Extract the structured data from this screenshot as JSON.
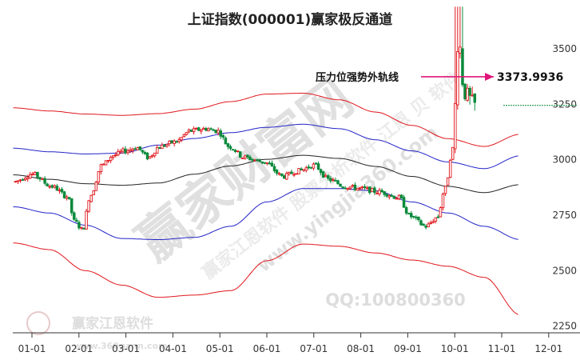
{
  "chart_data": {
    "type": "candlestick",
    "title": "上证指数(000001)赢家极反通道",
    "x_ticks": [
      "01-01",
      "02-01",
      "03-01",
      "04-01",
      "05-01",
      "06-01",
      "07-01",
      "08-01",
      "09-01",
      "10-01",
      "11-01",
      "12-01"
    ],
    "y_ticks": [
      2250,
      2500,
      2750,
      3000,
      3250,
      3500
    ],
    "ylim": [
      2220,
      3720
    ],
    "annotation": {
      "label": "压力位强势外轨线",
      "value": "3373.9936",
      "level": 3373.99
    },
    "watermarks": {
      "brand": "赢家财富网",
      "site": "www.yingjia360.com",
      "qq": "QQ:100800360",
      "logo_text": "赢家江恩软件",
      "logo_sub": "www.360gann.com",
      "diag_text": "赢家江恩软件 股票分析软件 江恩 贝 软件"
    },
    "colors": {
      "up": "#e0161b",
      "down": "#0b8a3c",
      "upper_band": "#e0161b",
      "lower_band": "#e0161b",
      "inner_upper": "#2323c8",
      "inner_lower": "#2323c8",
      "middle": "#222222",
      "arrow": "#e0167a"
    },
    "bands": {
      "outer_upper": [
        [
          0,
          3234
        ],
        [
          1,
          3220
        ],
        [
          2,
          3206
        ],
        [
          3,
          3200
        ],
        [
          4,
          3208
        ],
        [
          5,
          3228
        ],
        [
          6,
          3262
        ],
        [
          7,
          3296
        ],
        [
          8,
          3300
        ],
        [
          9,
          3270
        ],
        [
          10,
          3215
        ],
        [
          11,
          3155
        ],
        [
          12,
          3095
        ],
        [
          13,
          3060
        ],
        [
          14,
          3115
        ]
      ],
      "inner_upper": [
        [
          0,
          3052
        ],
        [
          1,
          3036
        ],
        [
          2,
          3026
        ],
        [
          3,
          3030
        ],
        [
          4,
          3066
        ],
        [
          5,
          3096
        ],
        [
          6,
          3122
        ],
        [
          7,
          3146
        ],
        [
          8,
          3160
        ],
        [
          9,
          3140
        ],
        [
          10,
          3090
        ],
        [
          11,
          3040
        ],
        [
          12,
          2990
        ],
        [
          13,
          2960
        ],
        [
          14,
          3018
        ]
      ],
      "middle": [
        [
          0,
          2932
        ],
        [
          1,
          2912
        ],
        [
          2,
          2892
        ],
        [
          3,
          2885
        ],
        [
          4,
          2895
        ],
        [
          5,
          2935
        ],
        [
          6,
          2972
        ],
        [
          7,
          3002
        ],
        [
          8,
          3020
        ],
        [
          9,
          3006
        ],
        [
          10,
          2970
        ],
        [
          11,
          2925
        ],
        [
          12,
          2880
        ],
        [
          13,
          2852
        ],
        [
          14,
          2888
        ]
      ],
      "inner_lower": [
        [
          0,
          2788
        ],
        [
          1,
          2760
        ],
        [
          2,
          2705
        ],
        [
          3,
          2645
        ],
        [
          4,
          2640
        ],
        [
          5,
          2650
        ],
        [
          6,
          2700
        ],
        [
          7,
          2810
        ],
        [
          8,
          2870
        ],
        [
          9,
          2870
        ],
        [
          10,
          2860
        ],
        [
          11,
          2810
        ],
        [
          12,
          2760
        ],
        [
          13,
          2700
        ],
        [
          14,
          2640
        ]
      ],
      "outer_lower": [
        [
          0,
          2625
        ],
        [
          1,
          2595
        ],
        [
          2,
          2500
        ],
        [
          3,
          2435
        ],
        [
          4,
          2380
        ],
        [
          5,
          2390
        ],
        [
          6,
          2410
        ],
        [
          7,
          2545
        ],
        [
          8,
          2620
        ],
        [
          9,
          2610
        ],
        [
          10,
          2580
        ],
        [
          11,
          2548
        ],
        [
          12,
          2520
        ],
        [
          13,
          2470
        ],
        [
          14,
          2300
        ]
      ]
    },
    "price_path": [
      [
        0,
        2900
      ],
      [
        0.5,
        2935
      ],
      [
        1,
        2880
      ],
      [
        1.4,
        2835
      ],
      [
        1.6,
        2720
      ],
      [
        1.8,
        2685
      ],
      [
        2,
        2840
      ],
      [
        2.3,
        2975
      ],
      [
        2.6,
        3020
      ],
      [
        2.9,
        3040
      ],
      [
        3.2,
        3055
      ],
      [
        3.5,
        3010
      ],
      [
        3.8,
        3060
      ],
      [
        4.2,
        3080
      ],
      [
        4.6,
        3130
      ],
      [
        5,
        3140
      ],
      [
        5.3,
        3130
      ],
      [
        5.6,
        3060
      ],
      [
        6,
        3010
      ],
      [
        6.5,
        2990
      ],
      [
        7,
        2925
      ],
      [
        7.4,
        2950
      ],
      [
        7.8,
        2975
      ],
      [
        8.2,
        2910
      ],
      [
        8.6,
        2880
      ],
      [
        9,
        2870
      ],
      [
        9.5,
        2855
      ],
      [
        10,
        2830
      ],
      [
        10.3,
        2745
      ],
      [
        10.7,
        2700
      ],
      [
        11,
        2740
      ],
      [
        11.2,
        2870
      ],
      [
        11.4,
        3050
      ],
      [
        11.55,
        3550
      ],
      [
        11.7,
        3300
      ],
      [
        12,
        3245
      ]
    ]
  }
}
